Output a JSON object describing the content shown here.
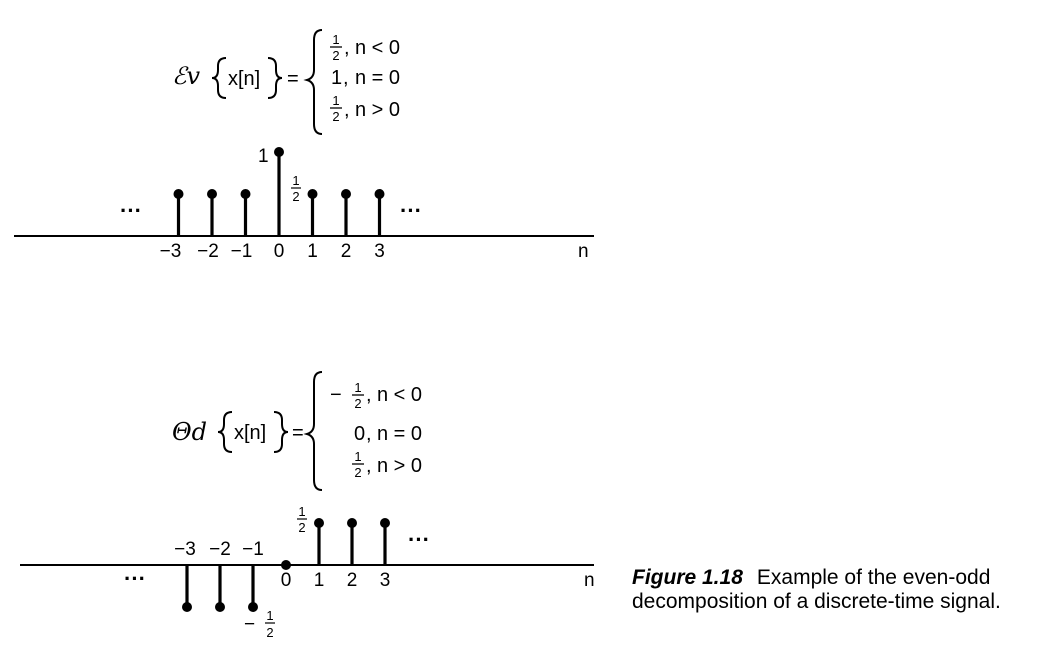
{
  "even": {
    "operator_symbol": "ℰv",
    "argument": "x[n]",
    "equals": "=",
    "cases": [
      {
        "value_num": "1",
        "value_den": "2",
        "condition": "n < 0"
      },
      {
        "value": "1",
        "condition": "n = 0"
      },
      {
        "value_num": "1",
        "value_den": "2",
        "condition": "n > 0"
      }
    ]
  },
  "odd": {
    "operator_symbol": "Θd",
    "argument": "x[n]",
    "equals": "=",
    "cases": [
      {
        "value_sign": "−",
        "value_num": "1",
        "value_den": "2",
        "condition": "n < 0"
      },
      {
        "value": "0",
        "condition": "n = 0"
      },
      {
        "value_num": "1",
        "value_den": "2",
        "condition": "n > 0"
      }
    ]
  },
  "even_plot": {
    "ellipsis": "···",
    "axis_label": "n",
    "tick_labels": [
      "−3",
      "−2",
      "−1",
      "0",
      "1",
      "2",
      "3"
    ],
    "peak_label": "1",
    "half_num": "1",
    "half_den": "2"
  },
  "odd_plot": {
    "ellipsis": "···",
    "axis_label": "n",
    "tick_labels": [
      "−3",
      "−2",
      "−1",
      "0",
      "1",
      "2",
      "3"
    ],
    "pos_half_num": "1",
    "pos_half_den": "2",
    "neg_sign": "−",
    "neg_half_num": "1",
    "neg_half_den": "2"
  },
  "chart_data": [
    {
      "type": "stem",
      "title": "Ev{x[n]}",
      "xlabel": "n",
      "x": [
        -3,
        -2,
        -1,
        0,
        1,
        2,
        3
      ],
      "values": [
        0.5,
        0.5,
        0.5,
        1,
        0.5,
        0.5,
        0.5
      ]
    },
    {
      "type": "stem",
      "title": "Od{x[n]}",
      "xlabel": "n",
      "x": [
        -3,
        -2,
        -1,
        0,
        1,
        2,
        3
      ],
      "values": [
        -0.5,
        -0.5,
        -0.5,
        0,
        0.5,
        0.5,
        0.5
      ]
    }
  ],
  "caption": {
    "label": "Figure 1.18",
    "text": "Example of the even-odd decomposition of a discrete-time signal."
  }
}
